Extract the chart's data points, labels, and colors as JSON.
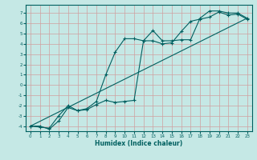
{
  "title": "",
  "xlabel": "Humidex (Indice chaleur)",
  "background_color": "#c5e8e5",
  "grid_color": "#b0d8d5",
  "line_color": "#006060",
  "xlim": [
    -0.5,
    23.5
  ],
  "ylim": [
    -4.5,
    7.8
  ],
  "xticks": [
    0,
    1,
    2,
    3,
    4,
    5,
    6,
    7,
    8,
    9,
    10,
    11,
    12,
    13,
    14,
    15,
    16,
    17,
    18,
    19,
    20,
    21,
    22,
    23
  ],
  "yticks": [
    -4,
    -3,
    -2,
    -1,
    0,
    1,
    2,
    3,
    4,
    5,
    6,
    7
  ],
  "series1_x": [
    0,
    1,
    2,
    3,
    4,
    5,
    6,
    7,
    8,
    9,
    10,
    11,
    12,
    13,
    14,
    15,
    16,
    17,
    18,
    19,
    20,
    21,
    22,
    23
  ],
  "series1_y": [
    -4.0,
    -4.0,
    -4.3,
    -3.5,
    -2.2,
    -2.5,
    -2.3,
    -1.6,
    1.0,
    3.2,
    4.5,
    4.5,
    4.3,
    5.3,
    4.3,
    4.3,
    4.4,
    4.4,
    6.5,
    7.2,
    7.2,
    7.0,
    7.0,
    6.5
  ],
  "series2_x": [
    0,
    1,
    2,
    3,
    4,
    5,
    6,
    7,
    8,
    9,
    10,
    11,
    12,
    13,
    14,
    15,
    16,
    17,
    18,
    19,
    20,
    21,
    22,
    23
  ],
  "series2_y": [
    -4.0,
    -4.1,
    -4.2,
    -3.0,
    -2.0,
    -2.5,
    -2.4,
    -1.9,
    -1.5,
    -1.7,
    -1.6,
    -1.5,
    4.3,
    4.3,
    4.0,
    4.1,
    5.2,
    6.2,
    6.4,
    6.6,
    7.1,
    6.8,
    6.9,
    6.4
  ],
  "series3_x": [
    0,
    23
  ],
  "series3_y": [
    -4.0,
    6.5
  ]
}
